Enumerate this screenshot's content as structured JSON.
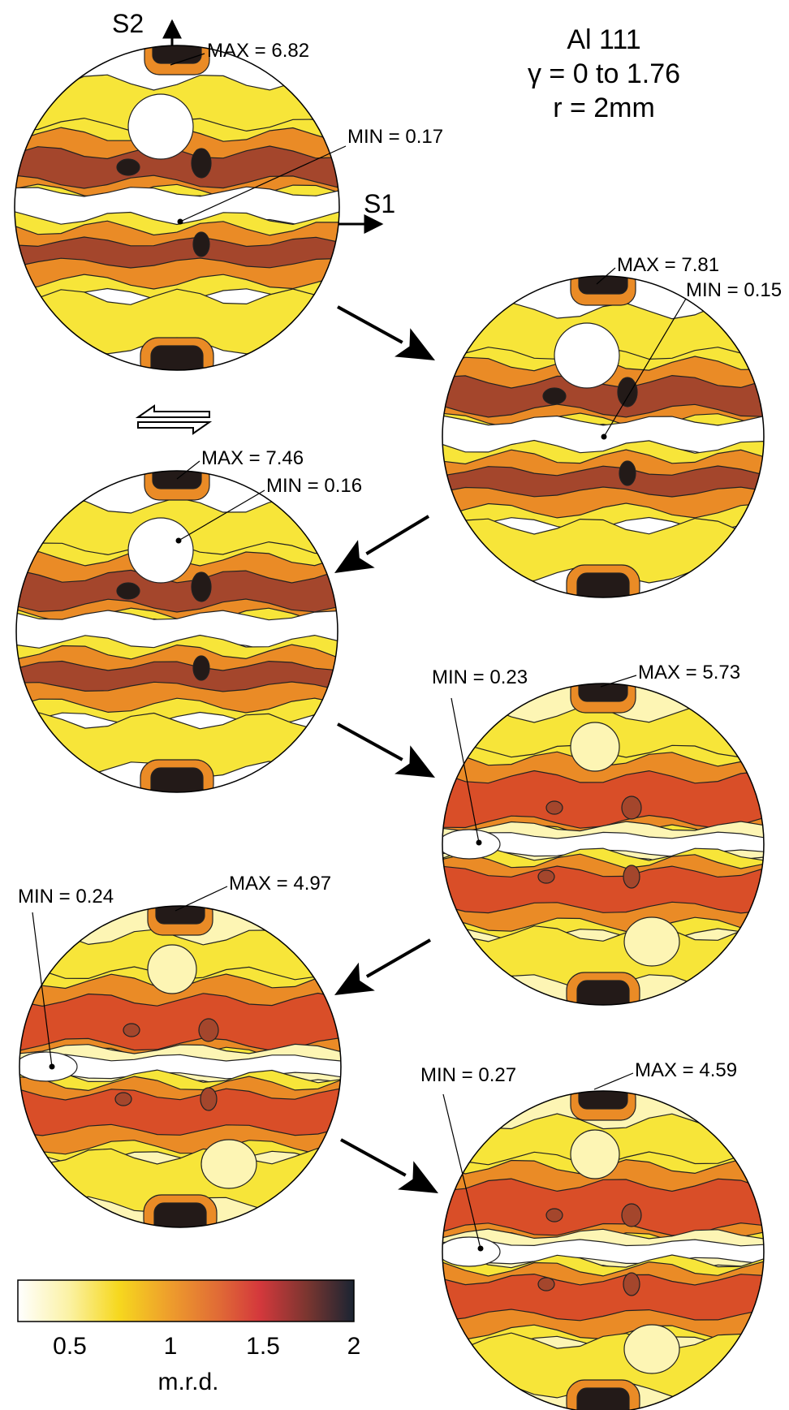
{
  "title": {
    "line1": "Al 111",
    "line2": "γ = 0 to 1.76",
    "line3": "r = 2mm"
  },
  "axes": {
    "s2": "S2",
    "s1": "S1"
  },
  "shear_sense_icon": "double-arrow-shear-icon",
  "pole_figures": [
    {
      "max": "MAX = 6.82",
      "min": "MIN = 0.17"
    },
    {
      "max": "MAX = 7.81",
      "min": "MIN = 0.15"
    },
    {
      "max": "MAX = 7.46",
      "min": "MIN = 0.16"
    },
    {
      "max": "MAX = 5.73",
      "min": "MIN = 0.23"
    },
    {
      "max": "MAX = 4.97",
      "min": "MIN = 0.24"
    },
    {
      "max": "MAX = 4.59",
      "min": "MIN = 0.27"
    }
  ],
  "colorbar": {
    "ticks": [
      "0.5",
      "1",
      "1.5",
      "2"
    ],
    "unit": "m.r.d.",
    "colors": [
      "#ffffff",
      "#fff6b0",
      "#f5d21e",
      "#ee9a2a",
      "#e05a34",
      "#c8373c",
      "#7a3a2e",
      "#1b2330"
    ]
  },
  "palette": {
    "white": "#ffffff",
    "pale": "#fdf5b4",
    "yellow": "#f7e539",
    "orange": "#ea8b26",
    "redorange": "#d94e28",
    "brown": "#a4462c",
    "dark": "#231a18"
  }
}
